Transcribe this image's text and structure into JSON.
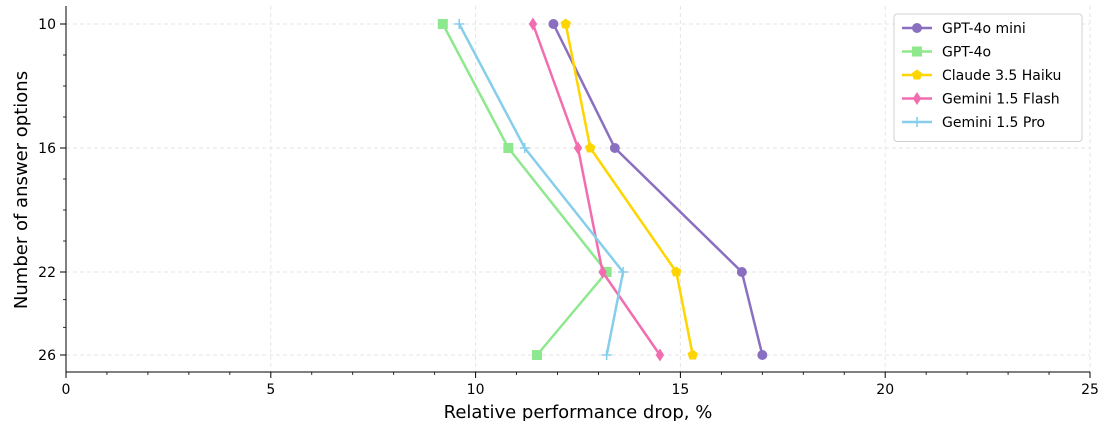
{
  "chart_data": {
    "type": "line",
    "orientation": "horizontal",
    "title": "",
    "xlabel": "Relative performance drop, %",
    "ylabel": "Number of answer options",
    "xlim": [
      0,
      25
    ],
    "xticks": [
      0,
      5,
      10,
      15,
      20,
      25
    ],
    "y_categories": [
      10,
      16,
      22,
      26
    ],
    "grid": true,
    "legend_position": "top-right",
    "series": [
      {
        "name": "GPT-4o mini",
        "color": "#8a6fc1",
        "marker": "circle",
        "x": [
          11.9,
          13.4,
          16.5,
          17.0
        ]
      },
      {
        "name": "GPT-4o",
        "color": "#8ee88e",
        "marker": "square",
        "x": [
          9.2,
          10.8,
          13.2,
          11.5
        ]
      },
      {
        "name": "Claude 3.5 Haiku",
        "color": "#ffd500",
        "marker": "pentagon",
        "x": [
          12.2,
          12.8,
          14.9,
          15.3
        ]
      },
      {
        "name": "Gemini 1.5 Flash",
        "color": "#f26db0",
        "marker": "diamond",
        "x": [
          11.4,
          12.5,
          13.1,
          14.5
        ]
      },
      {
        "name": "Gemini 1.5 Pro",
        "color": "#87ceeb",
        "marker": "plus",
        "x": [
          9.6,
          11.2,
          13.6,
          13.2
        ]
      }
    ]
  }
}
